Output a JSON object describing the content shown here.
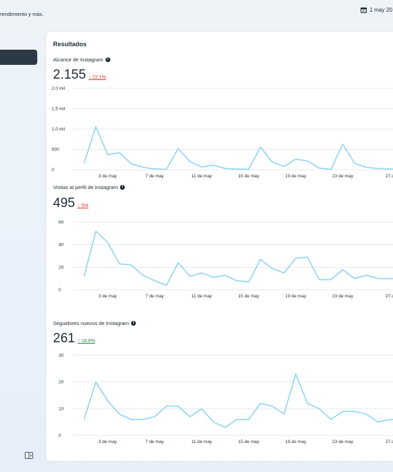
{
  "header": {
    "subtitle": "rendimiento y más.",
    "date_range": "1 may 20"
  },
  "card": {
    "title": "Resultados",
    "metrics": [
      {
        "label": "Alcance de Instagram",
        "value": "2.155",
        "delta": "22,1%",
        "direction": "down"
      },
      {
        "label": "Visitas al perfil de Instagram",
        "value": "495",
        "delta": "5%",
        "direction": "down"
      },
      {
        "label": "Seguidores nuevos de Instagram",
        "value": "261",
        "delta": "18,6%",
        "direction": "up"
      }
    ]
  },
  "colors": {
    "line": "#8fd3f5",
    "down": "#e0322f",
    "up": "#1d8a4a",
    "grid": "#e6e9ec"
  },
  "chart_data": [
    {
      "type": "line",
      "title": "Alcance de Instagram",
      "x_ticks": [
        "3 de may",
        "7 de may",
        "11 de may",
        "15 de may",
        "19 de may",
        "23 de may",
        "27 d"
      ],
      "y_ticks": [
        "0",
        "500",
        "1,0 mil",
        "1,5 mil",
        "2,0 mil"
      ],
      "ylim": [
        0,
        2000
      ],
      "x": [
        1,
        2,
        3,
        4,
        5,
        6,
        7,
        8,
        9,
        10,
        11,
        12,
        13,
        14,
        15,
        16,
        17,
        18,
        19,
        20,
        21,
        22,
        23,
        24,
        25,
        26,
        27,
        28
      ],
      "values": [
        160,
        1060,
        370,
        420,
        150,
        60,
        20,
        10,
        520,
        200,
        70,
        110,
        30,
        15,
        10,
        560,
        190,
        80,
        260,
        220,
        40,
        10,
        630,
        160,
        60,
        30,
        20,
        20
      ]
    },
    {
      "type": "line",
      "title": "Visitas al perfil de Instagram",
      "x_ticks": [
        "3 de may",
        "7 de may",
        "11 de may",
        "15 de may",
        "19 de may",
        "23 de may",
        "27 d"
      ],
      "y_ticks": [
        "0",
        "20",
        "40",
        "60"
      ],
      "ylim": [
        0,
        60
      ],
      "x": [
        1,
        2,
        3,
        4,
        5,
        6,
        7,
        8,
        9,
        10,
        11,
        12,
        13,
        14,
        15,
        16,
        17,
        18,
        19,
        20,
        21,
        22,
        23,
        24,
        25,
        26,
        27,
        28
      ],
      "values": [
        12,
        52,
        42,
        23,
        22,
        13,
        8,
        4,
        24,
        12,
        15,
        11,
        13,
        8,
        7,
        27,
        19,
        15,
        28,
        29,
        9,
        9,
        18,
        10,
        13,
        10,
        10,
        10
      ]
    },
    {
      "type": "line",
      "title": "Seguidores nuevos de Instagram",
      "x_ticks": [
        "3 de may",
        "7 de may",
        "11 de may",
        "15 de may",
        "19 de may",
        "23 de may",
        "27 d"
      ],
      "y_ticks": [
        "0",
        "10",
        "20",
        "30"
      ],
      "ylim": [
        0,
        30
      ],
      "x": [
        1,
        2,
        3,
        4,
        5,
        6,
        7,
        8,
        9,
        10,
        11,
        12,
        13,
        14,
        15,
        16,
        17,
        18,
        19,
        20,
        21,
        22,
        23,
        24,
        25,
        26,
        27,
        28
      ],
      "values": [
        6,
        20,
        13,
        8,
        6,
        6,
        7,
        11,
        11,
        7,
        10,
        5,
        3,
        6,
        6,
        12,
        11,
        8,
        23,
        12,
        10,
        6,
        9,
        9,
        8,
        5,
        6,
        6
      ]
    }
  ]
}
